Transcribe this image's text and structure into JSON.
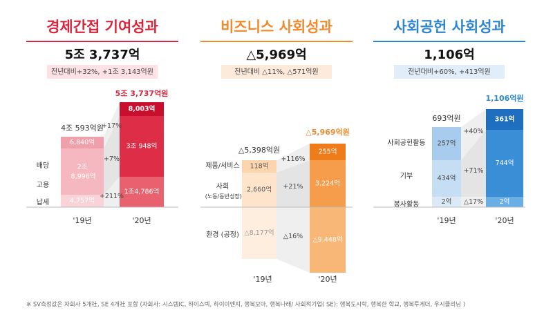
{
  "panels": [
    {
      "title": "경제간접 기여성과",
      "total": "5조 3,737억",
      "change": "전년대비+32%, +1조 3,143억원",
      "bar_labels": [
        "4조 593억원",
        "5조 3,737억원"
      ],
      "years": [
        "'19년",
        "'20년"
      ],
      "rows": [
        "배당",
        "고용",
        "납세"
      ],
      "segments_19": [
        "6,840억",
        "2조 8,996억",
        "4,757억"
      ],
      "segments_20": [
        "8,003억",
        "3조 948억",
        "1조4,786억"
      ],
      "growth": [
        "+17%",
        "+7%",
        "+211%"
      ]
    },
    {
      "title": "비즈니스 사회성과",
      "total": "△5,969억",
      "change": "전년대비 △11%, △571억원",
      "bar_labels": [
        "△5,398억원",
        "△5,969억원"
      ],
      "years": [
        "'19년",
        "'20년"
      ],
      "rows": [
        "제품/서비스",
        "사회 (노동/동반성장)",
        "환경 (공정)"
      ],
      "segments_19": [
        "118억",
        "2,660억",
        "△8,177억"
      ],
      "segments_20": [
        "255억",
        "3,224억",
        "△9,448억"
      ],
      "growth": [
        "+116%",
        "+21%",
        "△16%"
      ]
    },
    {
      "title": "사회공헌 사회성과",
      "total": "1,106억",
      "change": "전년대비+60%, +413억원",
      "bar_labels": [
        "693억원",
        "1,106억원"
      ],
      "years": [
        "'19년",
        "'20년"
      ],
      "rows": [
        "사회공헌활동",
        "기부",
        "봉사활동"
      ],
      "segments_19": [
        "257억",
        "434억",
        "2억"
      ],
      "segments_20": [
        "361억",
        "744억",
        "2억"
      ],
      "growth": [
        "+40%",
        "+71%",
        "△17%"
      ]
    }
  ],
  "footnote": "※  SV측정값은 자회사 5개社, SE 4개社 포함 (자회사: 시스템IC, 하이스텍, 하이이엔지,  행복모아, 행복나래/ 사회적기업( SE): 행복도시락, 행복한 학교, 행복투게더, 우시클리닝 )"
}
